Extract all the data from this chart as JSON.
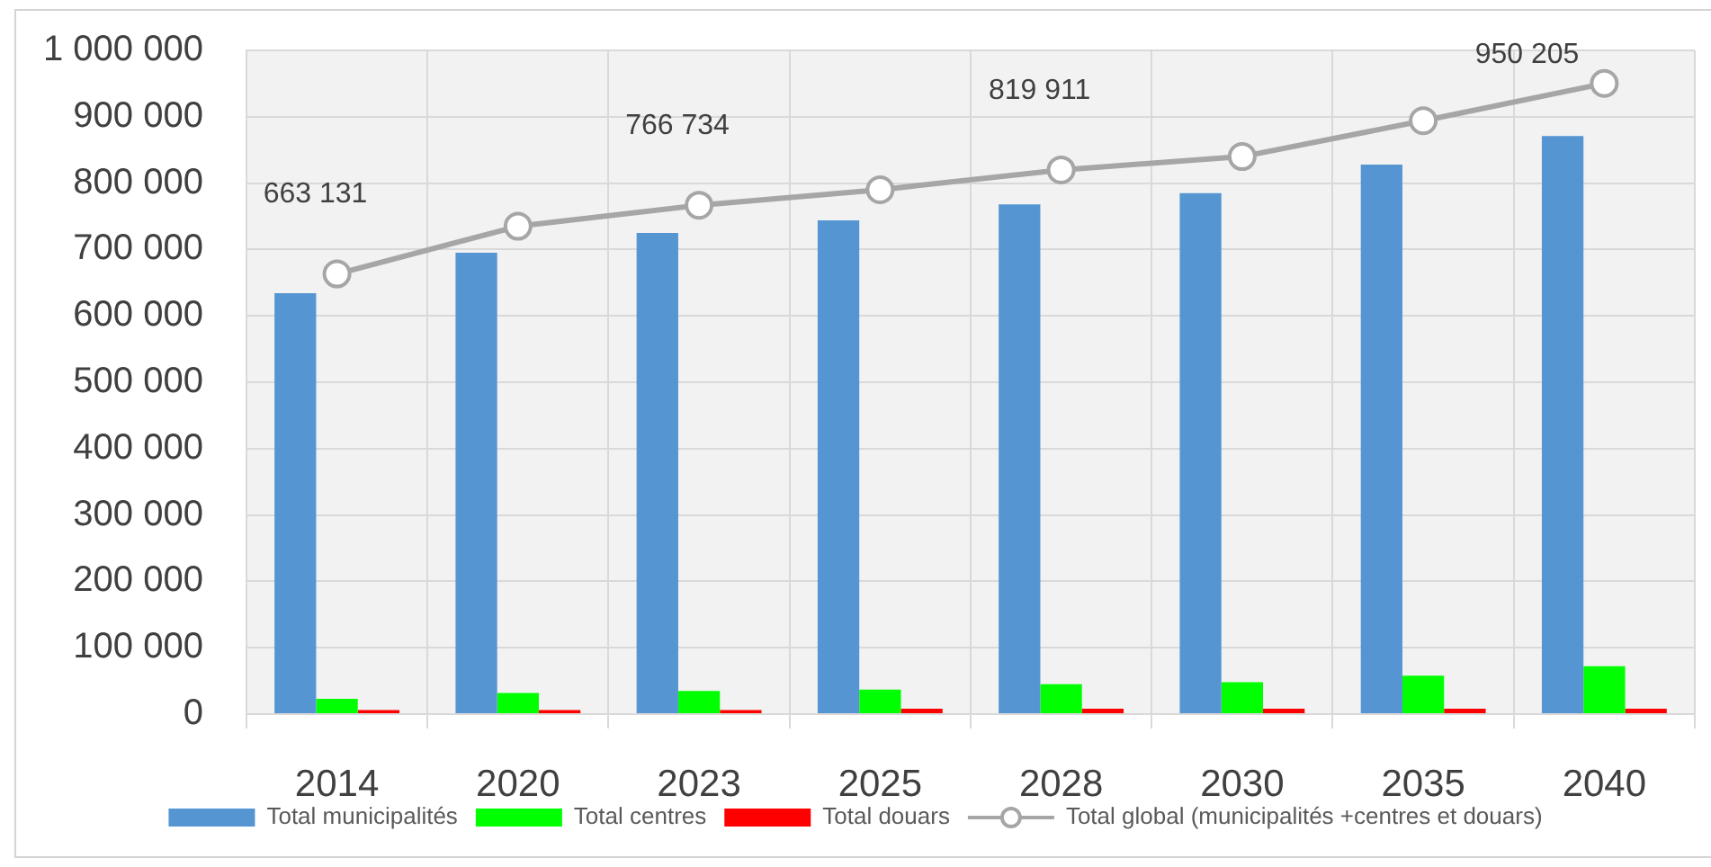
{
  "chart_data": {
    "type": "bar",
    "categories": [
      "2014",
      "2020",
      "2023",
      "2025",
      "2028",
      "2030",
      "2035",
      "2040"
    ],
    "series": [
      {
        "name": "Total municipalités",
        "color": "#5596d2",
        "values": [
          634000,
          695000,
          725000,
          744000,
          768000,
          785000,
          828000,
          871000
        ]
      },
      {
        "name": "Total centres",
        "color": "#00ff00",
        "values": [
          23000,
          32000,
          35000,
          37000,
          45000,
          48000,
          58000,
          72000
        ]
      },
      {
        "name": "Total douars",
        "color": "#ff0000",
        "values": [
          6000,
          6000,
          6000,
          8000,
          8000,
          8000,
          8000,
          8000
        ]
      },
      {
        "name": "Total global (municipalités +centres et douars)",
        "type": "line",
        "color": "#a6a6a6",
        "marker": "circle",
        "values": [
          663131,
          735000,
          766734,
          790000,
          819911,
          840000,
          894000,
          950205
        ],
        "value_labels": [
          "663 131",
          null,
          "766 734",
          null,
          "819 911",
          null,
          null,
          "950 205"
        ]
      }
    ],
    "ylim": [
      0,
      1000000
    ],
    "yticks": [
      0,
      {
        "value": 100000,
        "label": "100 000"
      },
      {
        "value": 200000,
        "label": "200 000"
      },
      {
        "value": 300000,
        "label": "300 000"
      },
      {
        "value": 400000,
        "label": "400 000"
      },
      {
        "value": 500000,
        "label": "500 000"
      },
      {
        "value": 600000,
        "label": "600 000"
      },
      {
        "value": 700000,
        "label": "700 000"
      },
      {
        "value": 800000,
        "label": "800 000"
      },
      {
        "value": 900000,
        "label": "900 000"
      },
      {
        "value": 1000000,
        "label": "1 000 000"
      }
    ],
    "grid": true,
    "legend": "bottom"
  }
}
